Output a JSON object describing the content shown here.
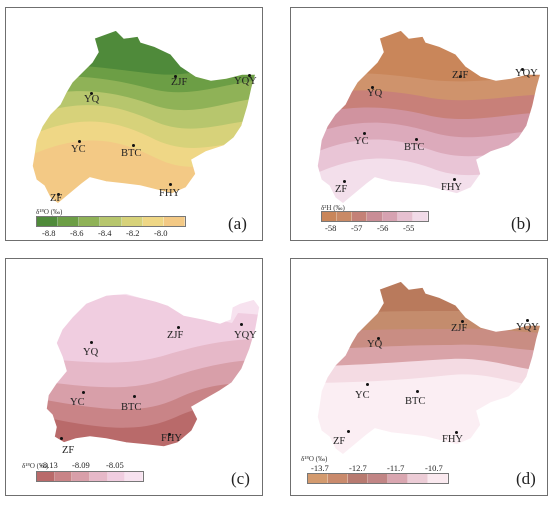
{
  "panels": [
    {
      "tag": "(a)",
      "legend_title": "δ¹⁸O (‰)",
      "legend_colors": [
        "#4f8a3a",
        "#6c9e45",
        "#8fb257",
        "#b7c66d",
        "#d7d27a",
        "#efd786",
        "#f3c985"
      ],
      "ticks": [
        "-8.8",
        "-8.6",
        "-8.4",
        "-8.2",
        "-8.0"
      ],
      "bands": [
        "#4f8a3a",
        "#6c9e45",
        "#8fb257",
        "#b7c66d",
        "#d7d27a",
        "#efd786",
        "#f3c985"
      ]
    },
    {
      "tag": "(b)",
      "legend_title": "δ²H (‰)",
      "legend_colors": [
        "#c9865a",
        "#c98a66",
        "#c48177",
        "#c98d96",
        "#d6a2b1",
        "#e6c0d0",
        "#f1dbe8"
      ],
      "ticks": [
        "-58",
        "-57",
        "-56",
        "-55"
      ],
      "bands": [
        "#c9865a",
        "#cf936c",
        "#c88079",
        "#d0939f",
        "#dcaabb",
        "#e9c5d6",
        "#f3dfeb"
      ]
    },
    {
      "tag": "(c)",
      "legend_title": "δ¹⁸O (‰)",
      "legend_colors": [
        "#b96a6a",
        "#c98487",
        "#d89fa9",
        "#e6b8c8",
        "#f0cde0",
        "#f7e2ef"
      ],
      "ticks": [
        "-8.13",
        "-8.09",
        "-8.05"
      ],
      "bands": [
        "#f7e2ef",
        "#f0cde0",
        "#e6b8c8",
        "#d89fa9",
        "#c98487",
        "#b96a6a"
      ]
    },
    {
      "tag": "(d)",
      "legend_title": "δ¹⁸O (‰)",
      "legend_colors": [
        "#d39a6e",
        "#c98a6c",
        "#b77a70",
        "#c18585",
        "#d9a6b0",
        "#ecccd6",
        "#fae9ef"
      ],
      "ticks": [
        "-13.7",
        "-12.7",
        "-11.7",
        "-10.7"
      ],
      "bands": [
        "#b97a5c",
        "#c48c6d",
        "#c98d83",
        "#d9a3a8",
        "#f4dbe3",
        "#fbeef3"
      ]
    }
  ],
  "stations": [
    "ZJF",
    "YQY",
    "YQ",
    "YC",
    "BTC",
    "ZF",
    "FHY"
  ]
}
